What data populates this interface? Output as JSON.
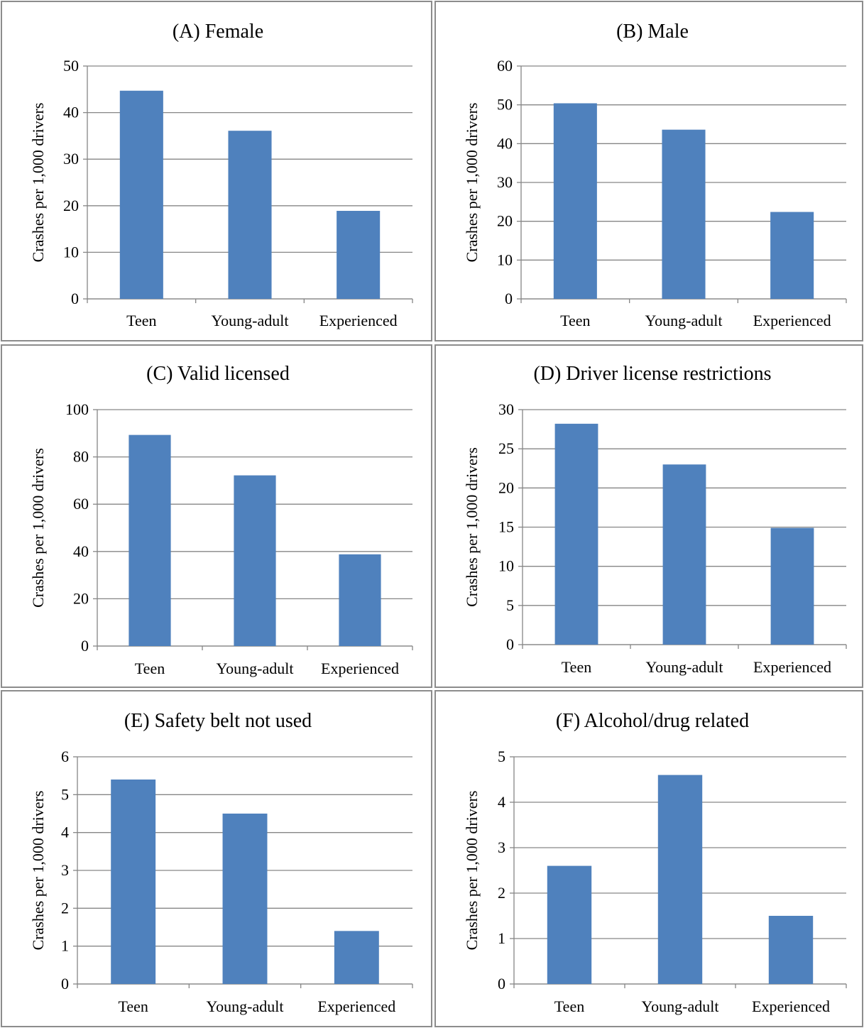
{
  "chart_data": [
    {
      "type": "bar",
      "title": "(A) Female",
      "ylabel": "Crashes per 1,000 drivers",
      "categories": [
        "Teen",
        "Young-adult",
        "Experienced"
      ],
      "values": [
        44.7,
        36.1,
        18.9
      ],
      "ylim": [
        0,
        50
      ],
      "yticks": [
        "0",
        "10",
        "20",
        "30",
        "40",
        "50"
      ],
      "grid": true
    },
    {
      "type": "bar",
      "title": "(B) Male",
      "ylabel": "Crashes per 1,000 drivers",
      "categories": [
        "Teen",
        "Young-adult",
        "Experienced"
      ],
      "values": [
        50.4,
        43.6,
        22.4
      ],
      "ylim": [
        0,
        60
      ],
      "yticks": [
        "0",
        "10",
        "20",
        "30",
        "40",
        "50",
        "60"
      ],
      "grid": true
    },
    {
      "type": "bar",
      "title": "(C) Valid licensed",
      "ylabel": "Crashes per 1,000 drivers",
      "categories": [
        "Teen",
        "Young-adult",
        "Experienced"
      ],
      "values": [
        89.3,
        72.2,
        38.8
      ],
      "ylim": [
        0,
        100
      ],
      "yticks": [
        "0",
        "20",
        "40",
        "60",
        "80",
        "100"
      ],
      "grid": true
    },
    {
      "type": "bar",
      "title": "(D) Driver license restrictions",
      "ylabel": "Crashes per 1,000 drivers",
      "categories": [
        "Teen",
        "Young-adult",
        "Experienced"
      ],
      "values": [
        28.2,
        23.0,
        14.9
      ],
      "ylim": [
        0,
        30
      ],
      "yticks": [
        "0",
        "5",
        "10",
        "15",
        "20",
        "25",
        "30"
      ],
      "grid": true
    },
    {
      "type": "bar",
      "title": "(E) Safety belt not used",
      "ylabel": "Crashes per 1,000 drivers",
      "categories": [
        "Teen",
        "Young-adult",
        "Experienced"
      ],
      "values": [
        5.4,
        4.5,
        1.4
      ],
      "ylim": [
        0,
        6
      ],
      "yticks": [
        "0",
        "1",
        "2",
        "3",
        "4",
        "5",
        "6"
      ],
      "grid": true
    },
    {
      "type": "bar",
      "title": "(F) Alcohol/drug related",
      "ylabel": "Crashes per 1,000 drivers",
      "categories": [
        "Teen",
        "Young-adult",
        "Experienced"
      ],
      "values": [
        2.6,
        4.6,
        1.5
      ],
      "ylim": [
        0,
        5
      ],
      "yticks": [
        "0",
        "1",
        "2",
        "3",
        "4",
        "5"
      ],
      "grid": true
    }
  ],
  "colors": {
    "bar": "#4f81bd",
    "grid": "#868686",
    "border": "#8c8c8c"
  }
}
